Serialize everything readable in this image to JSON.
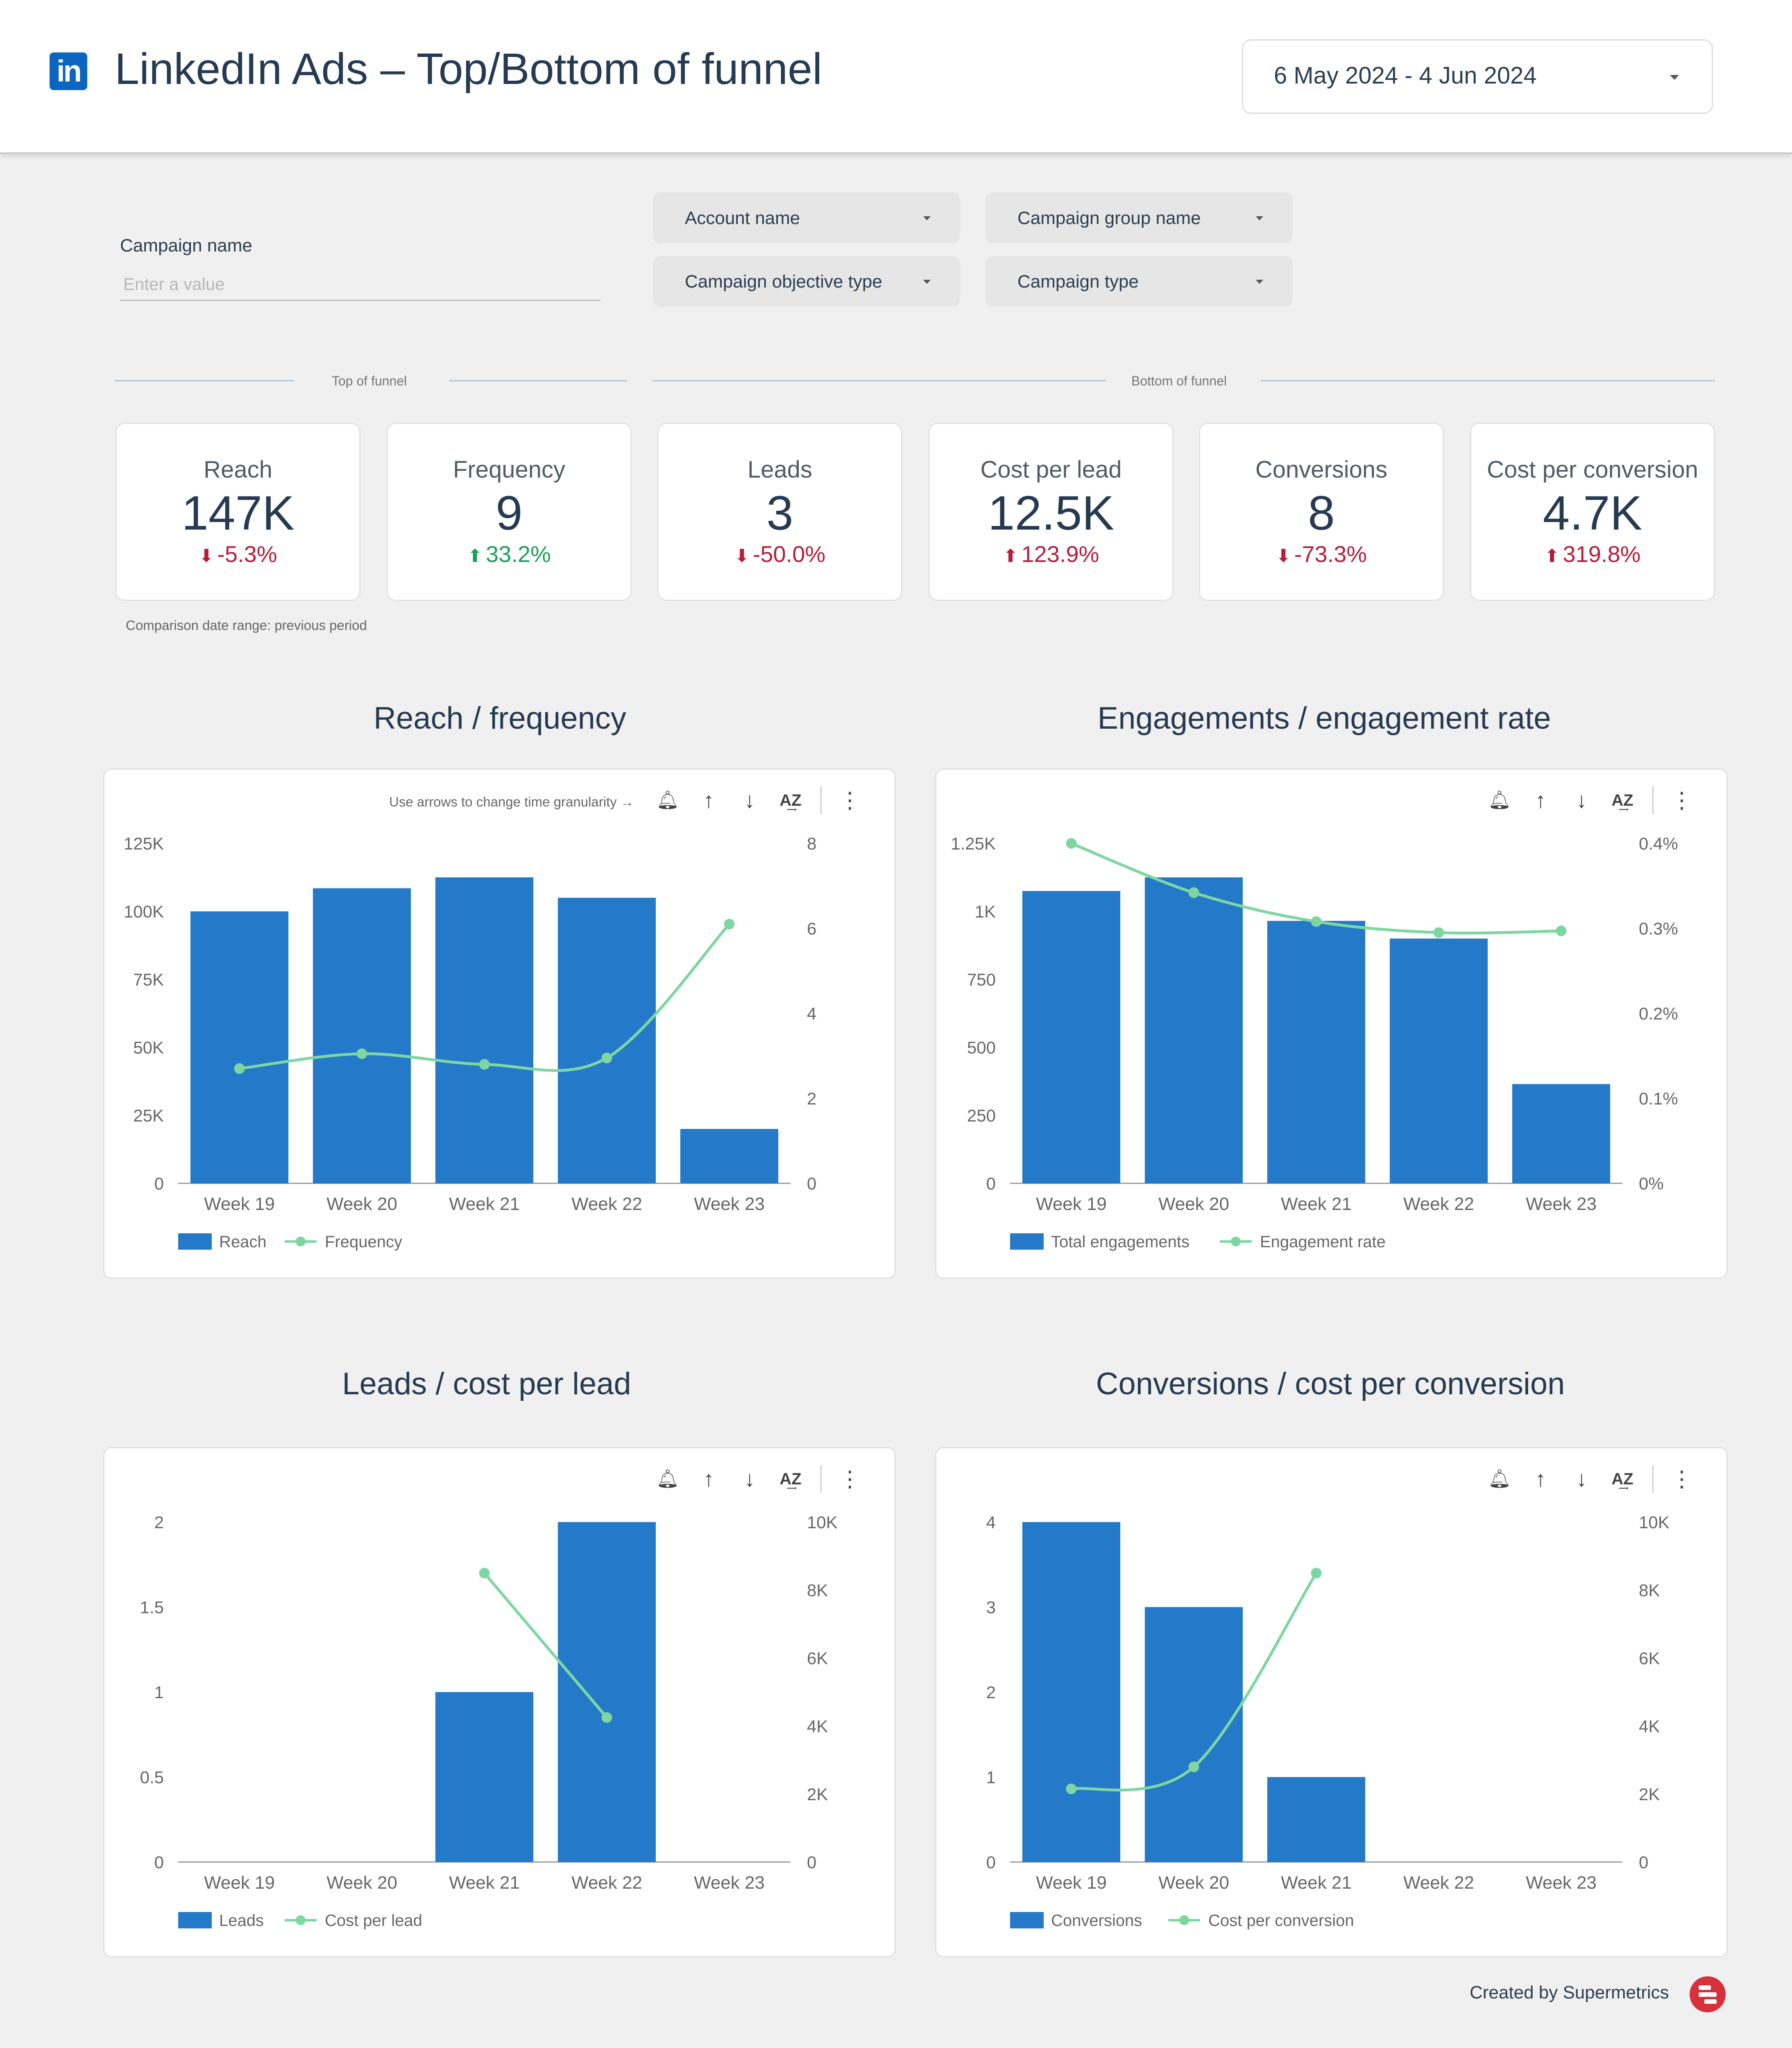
{
  "header": {
    "logo_text": "in",
    "title": "LinkedIn Ads  –  Top/Bottom of funnel",
    "date_range": "6 May 2024 - 4 Jun 2024",
    "logo_icon": "linkedin-icon",
    "accent_color": "#0a66c2"
  },
  "filters": {
    "campaign_name_label": "Campaign name",
    "campaign_name_placeholder": "Enter a value",
    "account_name": "Account name",
    "campaign_group_name": "Campaign group name",
    "campaign_objective_type": "Campaign objective type",
    "campaign_type": "Campaign type"
  },
  "sections": {
    "top": "Top of funnel",
    "bottom": "Bottom of funnel"
  },
  "kpis": [
    {
      "label": "Reach",
      "value": "147K",
      "delta": "-5.3%",
      "direction": "down",
      "color": "#b71c3a"
    },
    {
      "label": "Frequency",
      "value": "9",
      "delta": "33.2%",
      "direction": "up",
      "color": "#1e9e58"
    },
    {
      "label": "Leads",
      "value": "3",
      "delta": "-50.0%",
      "direction": "down",
      "color": "#b71c3a"
    },
    {
      "label": "Cost per lead",
      "value": "12.5K",
      "delta": "123.9%",
      "direction": "up",
      "color": "#b71c3a"
    },
    {
      "label": "Conversions",
      "value": "8",
      "delta": "-73.3%",
      "direction": "down",
      "color": "#b71c3a"
    },
    {
      "label": "Cost per conversion",
      "value": "4.7K",
      "delta": "319.8%",
      "direction": "up",
      "color": "#b71c3a"
    }
  ],
  "comparison_note": "Comparison date range: previous period",
  "granularity_hint": "Use arrows to change time granularity →",
  "toolbar_icons": [
    "alert-bell-icon",
    "arrow-up-icon",
    "arrow-down-icon",
    "sort-az-icon",
    "more-vert-icon"
  ],
  "charts": {
    "reach": {
      "title": "Reach / frequency"
    },
    "engagements": {
      "title": "Engagements / engagement rate"
    },
    "leads": {
      "title": "Leads / cost per lead"
    },
    "conversions": {
      "title": "Conversions / cost per conversion"
    }
  },
  "chart_data": [
    {
      "type": "bar",
      "title": "Reach / frequency",
      "categories": [
        "Week 19",
        "Week 20",
        "Week 21",
        "Week 22",
        "Week 23"
      ],
      "series": [
        {
          "name": "Reach",
          "type": "bar",
          "axis": "left",
          "color": "#2479c9",
          "values": [
            100000,
            108500,
            112500,
            105000,
            20000
          ]
        },
        {
          "name": "Frequency",
          "type": "line",
          "axis": "right",
          "color": "#7ed6a2",
          "values": [
            2.7,
            3.05,
            2.8,
            2.95,
            6.1
          ]
        }
      ],
      "y_left": {
        "ticks": [
          0,
          25000,
          50000,
          75000,
          100000,
          125000
        ],
        "tick_labels": [
          "0",
          "25K",
          "50K",
          "75K",
          "100K",
          "125K"
        ],
        "range": [
          0,
          125000
        ]
      },
      "y_right": {
        "ticks": [
          0,
          2,
          4,
          6,
          8
        ],
        "tick_labels": [
          "0",
          "2",
          "4",
          "6",
          "8"
        ],
        "range": [
          0,
          8
        ]
      },
      "legend": "bottom-left"
    },
    {
      "type": "bar",
      "title": "Engagements / engagement rate",
      "categories": [
        "Week 19",
        "Week 20",
        "Week 21",
        "Week 22",
        "Week 23"
      ],
      "series": [
        {
          "name": "Total engagements",
          "type": "bar",
          "axis": "left",
          "color": "#2479c9",
          "values": [
            1075,
            1125,
            965,
            900,
            365
          ]
        },
        {
          "name": "Engagement rate",
          "type": "line",
          "axis": "right",
          "color": "#7ed6a2",
          "values": [
            0.4,
            0.342,
            0.308,
            0.295,
            0.297
          ]
        }
      ],
      "y_left": {
        "ticks": [
          0,
          250,
          500,
          750,
          1000,
          1250
        ],
        "tick_labels": [
          "0",
          "250",
          "500",
          "750",
          "1K",
          "1.25K"
        ],
        "range": [
          0,
          1250
        ]
      },
      "y_right": {
        "ticks": [
          0,
          0.1,
          0.2,
          0.3,
          0.4
        ],
        "tick_labels": [
          "0%",
          "0.1%",
          "0.2%",
          "0.3%",
          "0.4%"
        ],
        "range": [
          0,
          0.4
        ]
      },
      "legend": "bottom-left"
    },
    {
      "type": "bar",
      "title": "Leads / cost per lead",
      "categories": [
        "Week 19",
        "Week 20",
        "Week 21",
        "Week 22",
        "Week 23"
      ],
      "series": [
        {
          "name": "Leads",
          "type": "bar",
          "axis": "left",
          "color": "#2479c9",
          "values": [
            0,
            0,
            1,
            2,
            0
          ]
        },
        {
          "name": "Cost per lead",
          "type": "line",
          "axis": "right",
          "color": "#7ed6a2",
          "values": [
            null,
            null,
            8500,
            4250,
            null
          ]
        }
      ],
      "y_left": {
        "ticks": [
          0,
          0.5,
          1,
          1.5,
          2
        ],
        "tick_labels": [
          "0",
          "0.5",
          "1",
          "1.5",
          "2"
        ],
        "range": [
          0,
          2
        ]
      },
      "y_right": {
        "ticks": [
          0,
          2000,
          4000,
          6000,
          8000,
          10000
        ],
        "tick_labels": [
          "0",
          "2K",
          "4K",
          "6K",
          "8K",
          "10K"
        ],
        "range": [
          0,
          10000
        ]
      },
      "legend": "bottom-left"
    },
    {
      "type": "bar",
      "title": "Conversions / cost per conversion",
      "categories": [
        "Week 19",
        "Week 20",
        "Week 21",
        "Week 22",
        "Week 23"
      ],
      "series": [
        {
          "name": "Conversions",
          "type": "bar",
          "axis": "left",
          "color": "#2479c9",
          "values": [
            4,
            3,
            1,
            0,
            0
          ]
        },
        {
          "name": "Cost per conversion",
          "type": "line",
          "axis": "right",
          "color": "#7ed6a2",
          "values": [
            2150,
            2800,
            8500,
            null,
            null
          ]
        }
      ],
      "y_left": {
        "ticks": [
          0,
          1,
          2,
          3,
          4
        ],
        "tick_labels": [
          "0",
          "1",
          "2",
          "3",
          "4"
        ],
        "range": [
          0,
          4
        ]
      },
      "y_right": {
        "ticks": [
          0,
          2000,
          4000,
          6000,
          8000,
          10000
        ],
        "tick_labels": [
          "0",
          "2K",
          "4K",
          "6K",
          "8K",
          "10K"
        ],
        "range": [
          0,
          10000
        ]
      },
      "legend": "bottom-left"
    }
  ],
  "footer": {
    "created_by": "Created by Supermetrics",
    "logo_icon": "supermetrics-logo-icon"
  }
}
